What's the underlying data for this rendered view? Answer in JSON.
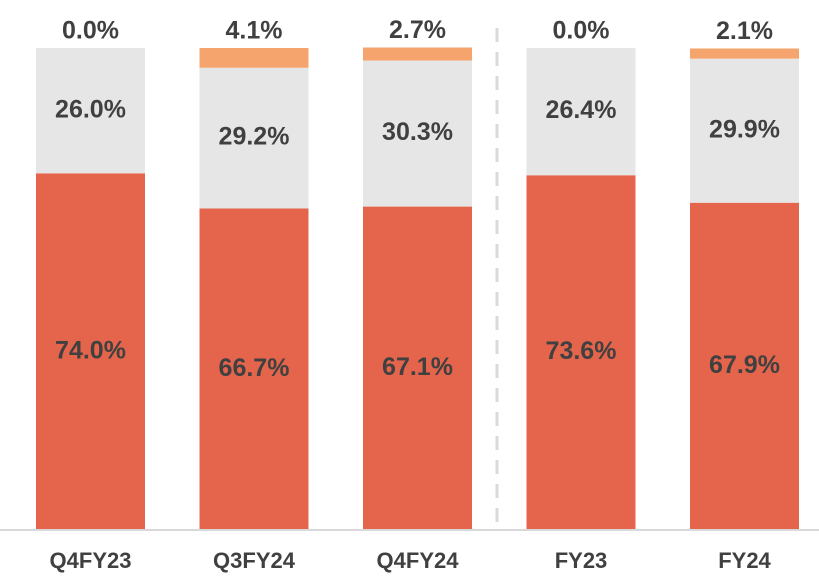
{
  "chart_data": {
    "type": "stacked_bar",
    "categories": [
      "Q4FY23",
      "Q3FY24",
      "Q4FY24",
      "FY23",
      "FY24"
    ],
    "series": [
      {
        "color": "#e4654b",
        "values": [
          74.0,
          66.7,
          67.1,
          73.6,
          67.9
        ],
        "value_labels": [
          "74.0%",
          "66.7%",
          "67.1%",
          "73.6%",
          "67.9%"
        ]
      },
      {
        "color": "#e6e6e6",
        "values": [
          26.0,
          29.2,
          30.3,
          26.4,
          29.9
        ],
        "value_labels": [
          "26.0%",
          "29.2%",
          "30.3%",
          "26.4%",
          "29.9%"
        ]
      },
      {
        "color": "#f4a46c",
        "values": [
          0.0,
          4.1,
          2.7,
          0.0,
          2.1
        ],
        "value_labels": [
          "0.0%",
          "4.1%",
          "2.7%",
          "0.0%",
          "2.1%"
        ]
      }
    ],
    "ylim": [
      0,
      100
    ]
  }
}
